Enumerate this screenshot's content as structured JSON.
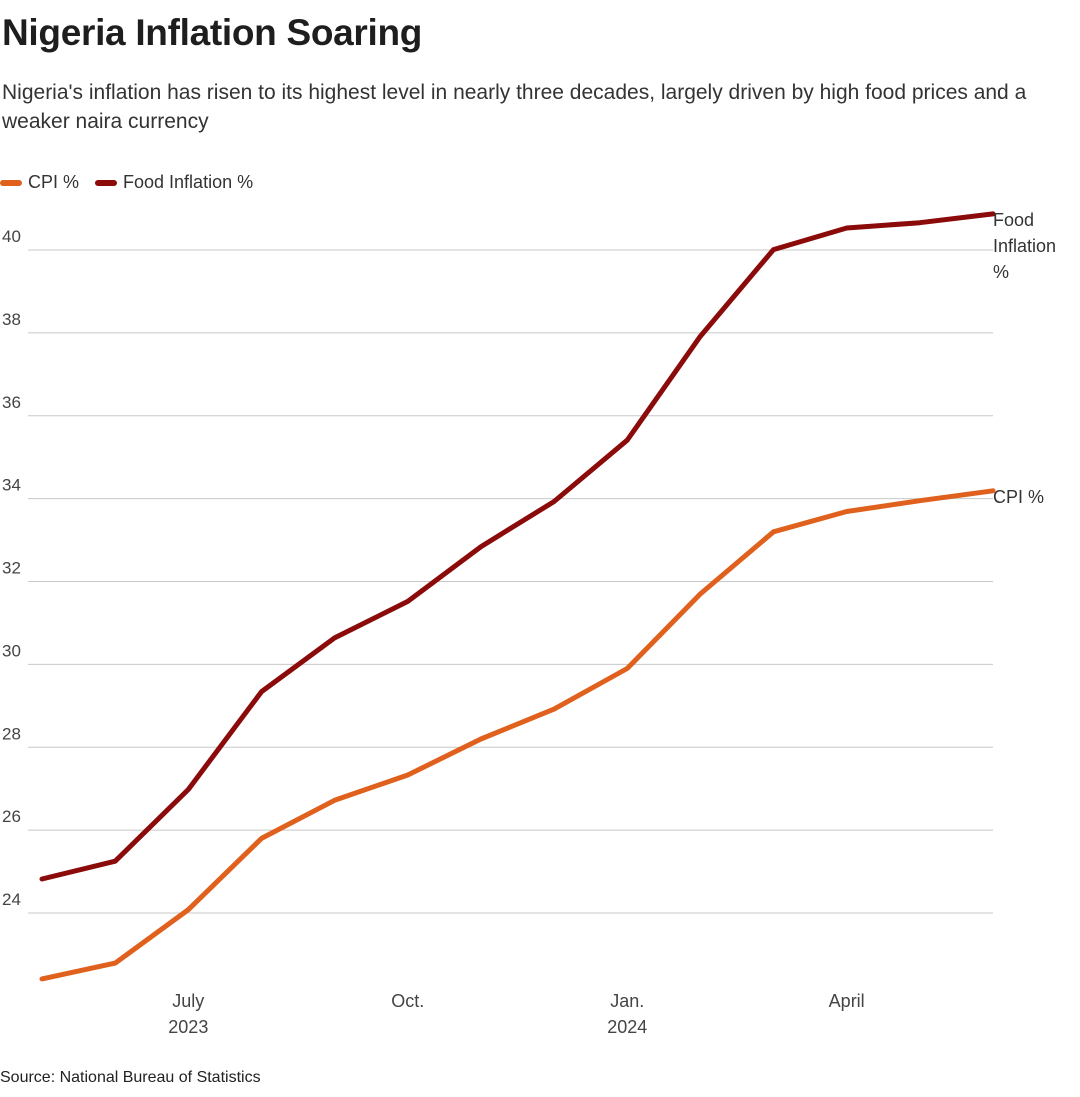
{
  "header": {
    "title": "Nigeria Inflation Soaring",
    "subtitle": "Nigeria's inflation has risen to its highest level in nearly three decades, largely driven by high food prices and a weaker naira currency"
  },
  "footer": {
    "source": "Source: National Bureau of Statistics"
  },
  "chart_data": {
    "type": "line",
    "title": "Nigeria Inflation Soaring",
    "subtitle": "Nigeria's inflation has risen to its highest level in nearly three decades, largely driven by high food prices and a weaker naira currency",
    "xlabel": "",
    "ylabel": "",
    "x": [
      "2023-05",
      "2023-06",
      "2023-07",
      "2023-08",
      "2023-09",
      "2023-10",
      "2023-11",
      "2023-12",
      "2024-01",
      "2024-02",
      "2024-03",
      "2024-04",
      "2024-05",
      "2024-06"
    ],
    "x_ticks": [
      {
        "x": "2023-07",
        "label": "July",
        "sublabel": "2023"
      },
      {
        "x": "2023-10",
        "label": "Oct.",
        "sublabel": ""
      },
      {
        "x": "2024-01",
        "label": "Jan.",
        "sublabel": "2024"
      },
      {
        "x": "2024-04",
        "label": "April",
        "sublabel": ""
      }
    ],
    "ylim": [
      22.5,
      41
    ],
    "y_ticks": [
      24,
      26,
      28,
      30,
      32,
      34,
      36,
      38,
      40
    ],
    "grid": true,
    "legend_position": "top-left",
    "series": [
      {
        "name": "CPI %",
        "color": "#e0611d",
        "values": [
          22.41,
          22.79,
          24.08,
          25.8,
          26.72,
          27.33,
          28.2,
          28.92,
          29.9,
          31.7,
          33.2,
          33.69,
          33.95,
          34.19
        ]
      },
      {
        "name": "Food Inflation %",
        "color": "#8b0a0a",
        "values": [
          24.82,
          25.25,
          26.98,
          29.34,
          30.64,
          31.52,
          32.84,
          33.93,
          35.41,
          37.92,
          40.01,
          40.53,
          40.66,
          40.87
        ]
      }
    ],
    "end_labels": [
      {
        "series": "Food Inflation %",
        "lines": [
          "Food",
          "Inflation",
          "%"
        ]
      },
      {
        "series": "CPI %",
        "lines": [
          "CPI %"
        ]
      }
    ]
  }
}
